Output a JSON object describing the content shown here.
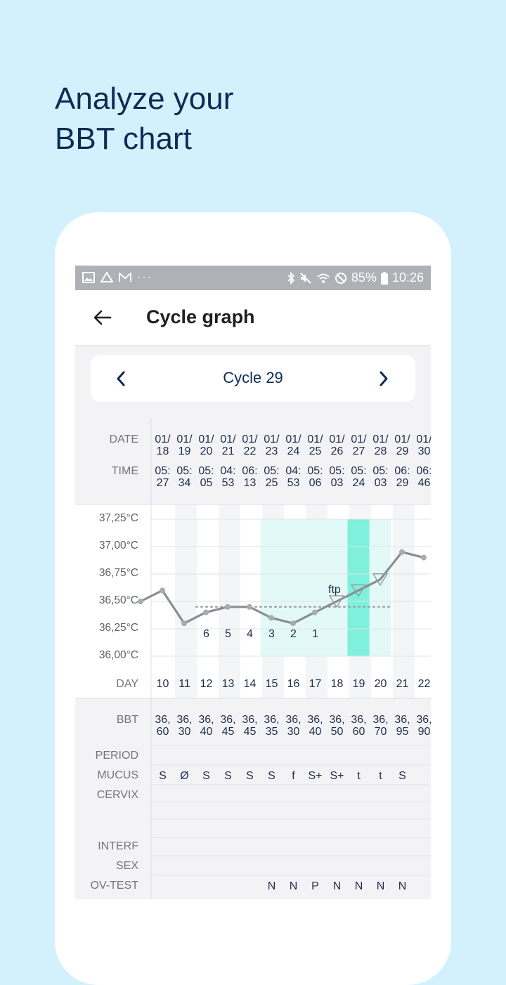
{
  "headline": {
    "line1": "Analyze your",
    "line2": "BBT chart"
  },
  "status_bar": {
    "battery": "85%",
    "time": "10:26",
    "left_icons": [
      "gallery-icon",
      "drive-icon",
      "gmail-icon",
      "more-icon"
    ],
    "right_icons": [
      "bluetooth-icon",
      "mute-icon",
      "wifi-icon",
      "dnd-icon",
      "battery-icon"
    ]
  },
  "app_bar": {
    "title": "Cycle graph",
    "back_icon": "arrow-left-icon"
  },
  "cycle_nav": {
    "label": "Cycle 29",
    "prev_icon": "chevron-left-icon",
    "next_icon": "chevron-right-icon"
  },
  "header_labels": {
    "date": "DATE",
    "time": "TIME",
    "day": "DAY",
    "bbt": "BBT",
    "period": "PERIOD",
    "mucus": "MUCUS",
    "cervix": "CERVIX",
    "interf": "INTERF",
    "sex": "SEX",
    "ovtest": "OV-TEST"
  },
  "columns": [
    {
      "date": [
        "01/",
        "18"
      ],
      "time": [
        "05:",
        "27"
      ],
      "day": "10",
      "bbt": [
        "36,",
        "60"
      ],
      "mucus": "S",
      "ovtest": ""
    },
    {
      "date": [
        "01/",
        "19"
      ],
      "time": [
        "05:",
        "34"
      ],
      "day": "11",
      "bbt": [
        "36,",
        "30"
      ],
      "mucus": "Ø",
      "ovtest": ""
    },
    {
      "date": [
        "01/",
        "20"
      ],
      "time": [
        "05:",
        "05"
      ],
      "day": "12",
      "bbt": [
        "36,",
        "40"
      ],
      "mucus": "S",
      "ovtest": ""
    },
    {
      "date": [
        "01/",
        "21"
      ],
      "time": [
        "04:",
        "53"
      ],
      "day": "13",
      "bbt": [
        "36,",
        "45"
      ],
      "mucus": "S",
      "ovtest": ""
    },
    {
      "date": [
        "01/",
        "22"
      ],
      "time": [
        "06:",
        "13"
      ],
      "day": "14",
      "bbt": [
        "36,",
        "45"
      ],
      "mucus": "S",
      "ovtest": ""
    },
    {
      "date": [
        "01/",
        "23"
      ],
      "time": [
        "05:",
        "25"
      ],
      "day": "15",
      "bbt": [
        "36,",
        "35"
      ],
      "mucus": "S",
      "ovtest": "N"
    },
    {
      "date": [
        "01/",
        "24"
      ],
      "time": [
        "04:",
        "53"
      ],
      "day": "16",
      "bbt": [
        "36,",
        "30"
      ],
      "mucus": "f",
      "ovtest": "N"
    },
    {
      "date": [
        "01/",
        "25"
      ],
      "time": [
        "05:",
        "06"
      ],
      "day": "17",
      "bbt": [
        "36,",
        "40"
      ],
      "mucus": "S+",
      "ovtest": "P"
    },
    {
      "date": [
        "01/",
        "26"
      ],
      "time": [
        "05:",
        "03"
      ],
      "day": "18",
      "bbt": [
        "36,",
        "50"
      ],
      "mucus": "S+",
      "ovtest": "N"
    },
    {
      "date": [
        "01/",
        "27"
      ],
      "time": [
        "05:",
        "24"
      ],
      "day": "19",
      "bbt": [
        "36,",
        "60"
      ],
      "mucus": "t",
      "ovtest": "N"
    },
    {
      "date": [
        "01/",
        "28"
      ],
      "time": [
        "05:",
        "03"
      ],
      "day": "20",
      "bbt": [
        "36,",
        "70"
      ],
      "mucus": "t",
      "ovtest": "N"
    },
    {
      "date": [
        "01/",
        "29"
      ],
      "time": [
        "06:",
        "29"
      ],
      "day": "21",
      "bbt": [
        "36,",
        "95"
      ],
      "mucus": "S",
      "ovtest": "N"
    },
    {
      "date": [
        "01/",
        "30"
      ],
      "time": [
        "06:",
        "46"
      ],
      "day": "22",
      "bbt": [
        "36,",
        "90"
      ],
      "mucus": "",
      "ovtest": ""
    }
  ],
  "chart_data": {
    "type": "line",
    "title": "",
    "xlabel": "DAY",
    "ylabel": "",
    "y_tick_labels": [
      "37,25°C",
      "37,00°C",
      "36,75°C",
      "36,50°C",
      "36,25°C",
      "36,00°C"
    ],
    "ylim": [
      36.0,
      37.25
    ],
    "x": [
      9,
      10,
      11,
      12,
      13,
      14,
      15,
      16,
      17,
      18,
      19,
      20,
      21,
      22
    ],
    "series": [
      {
        "values": [
          36.5,
          36.6,
          36.3,
          36.4,
          36.45,
          36.45,
          36.35,
          36.3,
          36.4,
          36.5,
          36.6,
          36.7,
          36.95,
          36.9
        ]
      }
    ],
    "coverline": 36.45,
    "count_labels": [
      {
        "day": 12,
        "label": "6"
      },
      {
        "day": 13,
        "label": "5"
      },
      {
        "day": 14,
        "label": "4"
      },
      {
        "day": 15,
        "label": "3"
      },
      {
        "day": 16,
        "label": "2"
      },
      {
        "day": 17,
        "label": "1"
      }
    ],
    "annotation": {
      "day": 18,
      "label": "ftp"
    },
    "triangle_markers": [
      18,
      19,
      20
    ],
    "fertile_window_days": [
      15,
      20
    ],
    "ovulation_day": 19,
    "colors": {
      "line": "#8a8e94",
      "fertile": "#e3f9f7",
      "ovulation": "#7ef0dc",
      "coverline": "#9a9ea3"
    }
  }
}
